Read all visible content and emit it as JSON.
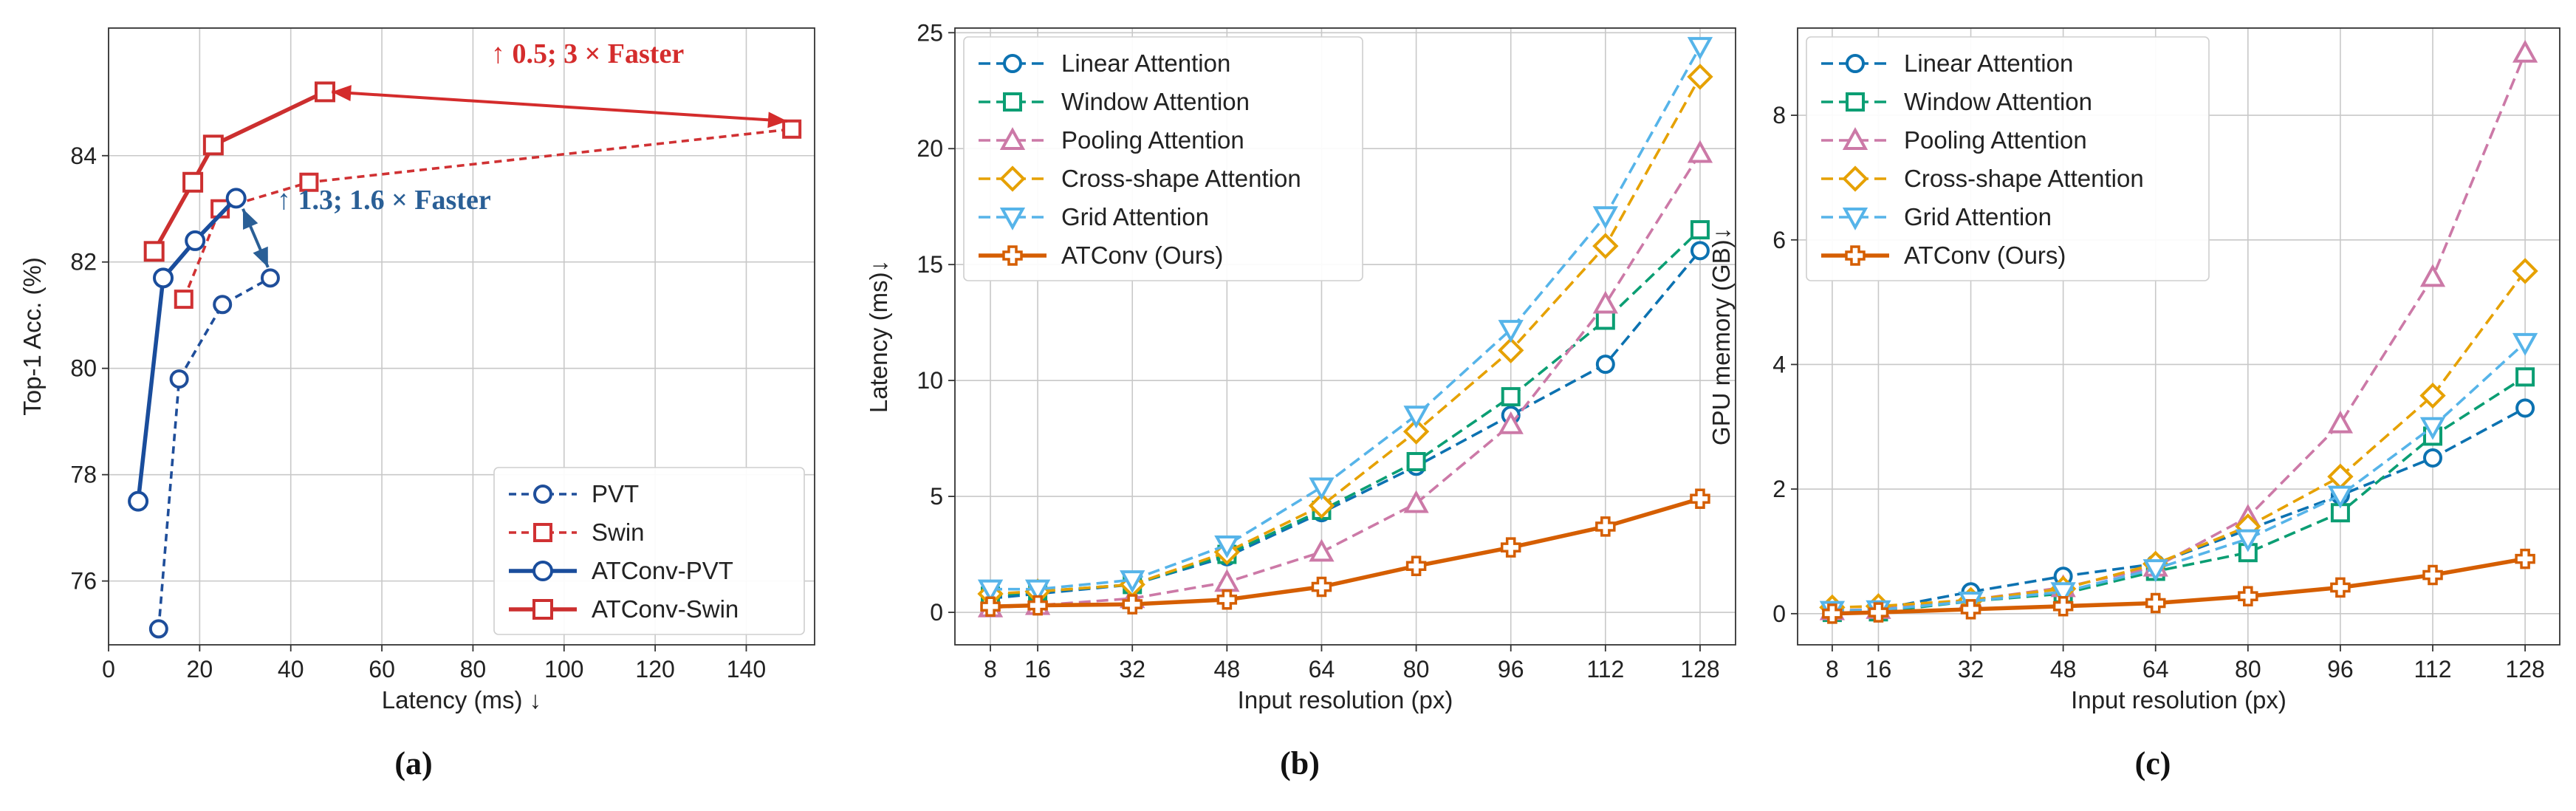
{
  "chart_data": [
    {
      "id": "a",
      "type": "line",
      "caption": "(a)",
      "xlabel": "Latency (ms) ↓",
      "ylabel": "Top-1 Acc. (%)",
      "xlim": [
        0,
        155
      ],
      "ylim": [
        74.8,
        86.4
      ],
      "xticks": [
        0,
        20,
        40,
        60,
        80,
        100,
        120,
        140
      ],
      "yticks": [
        76,
        78,
        80,
        82,
        84
      ],
      "grid": true,
      "legend_position": "bottom-right",
      "series": [
        {
          "name": "PVT",
          "color": "#1f4e9a",
          "dash": true,
          "marker": "circle",
          "points": [
            [
              11,
              75.1
            ],
            [
              15.5,
              79.8
            ],
            [
              25,
              81.2
            ],
            [
              35.5,
              81.7
            ]
          ]
        },
        {
          "name": "Swin",
          "color": "#d03133",
          "dash": true,
          "marker": "square",
          "points": [
            [
              16.5,
              81.3
            ],
            [
              24.5,
              83.0
            ],
            [
              44,
              83.5
            ],
            [
              150,
              84.5
            ]
          ]
        },
        {
          "name": "ATConv-PVT",
          "color": "#1a4d9c",
          "dash": false,
          "marker": "circle",
          "points": [
            [
              6.5,
              77.5
            ],
            [
              12,
              81.7
            ],
            [
              19,
              82.4
            ],
            [
              28,
              83.2
            ]
          ]
        },
        {
          "name": "ATConv-Swin",
          "color": "#cc2f2f",
          "dash": false,
          "marker": "square",
          "points": [
            [
              10,
              82.2
            ],
            [
              18.5,
              83.5
            ],
            [
              23,
              84.2
            ],
            [
              47.5,
              85.2
            ]
          ]
        }
      ],
      "annotations": [
        {
          "text": "↑ 0.5;  3 × Faster",
          "color": "#d42c2c",
          "from": [
            149,
            84.65
          ],
          "to": [
            49,
            85.2
          ],
          "double_headed": true
        },
        {
          "text": "↑ 1.3;  1.6 × Faster",
          "color": "#2a5f96",
          "from": [
            29.5,
            83.0
          ],
          "to": [
            35,
            81.9
          ],
          "double_headed": true
        }
      ]
    },
    {
      "id": "b",
      "type": "line",
      "caption": "(b)",
      "xlabel": "Input resolution (px)",
      "ylabel": "Latency (ms)↓",
      "xlim": [
        2,
        134
      ],
      "ylim": [
        -1.4,
        25.2
      ],
      "xticks": [
        8,
        16,
        32,
        48,
        64,
        80,
        96,
        112,
        128
      ],
      "yticks": [
        0,
        5,
        10,
        15,
        20,
        25
      ],
      "grid": true,
      "legend_position": "top-left",
      "categories": [
        8,
        16,
        32,
        48,
        64,
        80,
        96,
        112,
        128
      ],
      "series": [
        {
          "name": "Linear Attention",
          "color": "#0c72b1",
          "dash": true,
          "marker": "circle",
          "values": [
            0.6,
            0.8,
            1.2,
            2.4,
            4.3,
            6.3,
            8.5,
            10.7,
            15.6
          ]
        },
        {
          "name": "Window Attention",
          "color": "#0b9e73",
          "dash": true,
          "marker": "square",
          "values": [
            0.7,
            0.9,
            1.2,
            2.5,
            4.4,
            6.5,
            9.3,
            12.6,
            16.5
          ]
        },
        {
          "name": "Pooling Attention",
          "color": "#cc79a7",
          "dash": true,
          "marker": "triangle-up",
          "values": [
            0.2,
            0.3,
            0.6,
            1.3,
            2.6,
            4.7,
            8.1,
            13.3,
            19.8
          ]
        },
        {
          "name": "Cross-shape Attention",
          "color": "#e6a100",
          "dash": true,
          "marker": "diamond",
          "values": [
            0.8,
            0.9,
            1.2,
            2.6,
            4.6,
            7.8,
            11.3,
            15.8,
            23.1
          ]
        },
        {
          "name": "Grid Attention",
          "color": "#56b4e9",
          "dash": true,
          "marker": "triangle-down",
          "values": [
            1.0,
            1.0,
            1.4,
            2.9,
            5.4,
            8.5,
            12.2,
            17.1,
            24.4
          ]
        },
        {
          "name": "ATConv (Ours)",
          "color": "#d55e00",
          "dash": false,
          "marker": "plus",
          "values": [
            0.25,
            0.3,
            0.35,
            0.55,
            1.1,
            2.0,
            2.8,
            3.7,
            4.9
          ]
        }
      ]
    },
    {
      "id": "c",
      "type": "line",
      "caption": "(c)",
      "xlabel": "Input resolution (px)",
      "ylabel": "GPU memory (GB)↓",
      "xlim": [
        2,
        134
      ],
      "ylim": [
        -0.5,
        9.4
      ],
      "xticks": [
        8,
        16,
        32,
        48,
        64,
        80,
        96,
        112,
        128
      ],
      "yticks": [
        0,
        2,
        4,
        6,
        8
      ],
      "grid": true,
      "legend_position": "top-left",
      "categories": [
        8,
        16,
        32,
        48,
        64,
        80,
        96,
        112,
        128
      ],
      "series": [
        {
          "name": "Linear Attention",
          "color": "#0c72b1",
          "dash": true,
          "marker": "circle",
          "values": [
            0.02,
            0.07,
            0.35,
            0.6,
            0.8,
            1.35,
            1.9,
            2.5,
            3.3
          ]
        },
        {
          "name": "Window Attention",
          "color": "#0b9e73",
          "dash": true,
          "marker": "square",
          "values": [
            0.02,
            0.03,
            0.2,
            0.32,
            0.68,
            0.98,
            1.62,
            2.85,
            3.8
          ]
        },
        {
          "name": "Pooling Attention",
          "color": "#cc79a7",
          "dash": true,
          "marker": "triangle-up",
          "values": [
            0.05,
            0.07,
            0.22,
            0.42,
            0.75,
            1.55,
            3.05,
            5.4,
            9.0
          ]
        },
        {
          "name": "Cross-shape Attention",
          "color": "#e6a100",
          "dash": true,
          "marker": "diamond",
          "values": [
            0.1,
            0.12,
            0.22,
            0.4,
            0.8,
            1.4,
            2.2,
            3.5,
            5.5
          ]
        },
        {
          "name": "Grid Attention",
          "color": "#56b4e9",
          "dash": true,
          "marker": "triangle-down",
          "values": [
            0.05,
            0.06,
            0.2,
            0.35,
            0.72,
            1.2,
            1.9,
            3.0,
            4.35
          ]
        },
        {
          "name": "ATConv (Ours)",
          "color": "#d55e00",
          "dash": false,
          "marker": "plus",
          "values": [
            0.0,
            0.02,
            0.07,
            0.12,
            0.17,
            0.28,
            0.42,
            0.62,
            0.88
          ]
        }
      ]
    }
  ]
}
